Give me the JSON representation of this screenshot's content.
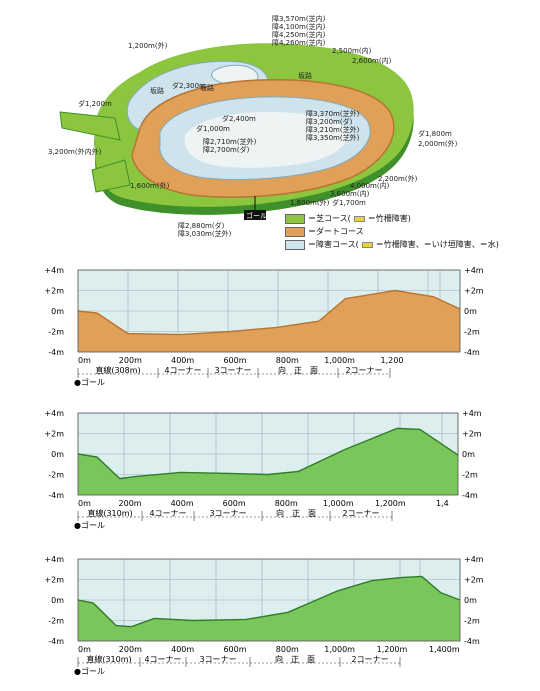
{
  "course_map": {
    "labels": {
      "hurdle_3570": "障3,570m(芝内)",
      "hurdle_4100": "障4,100m(芝内)",
      "hurdle_4250": "障4,250m(芝内)",
      "hurdle_4260": "障4,260m(芝内)",
      "turf_1200_outer": "1,200m(外)",
      "turf_2500_inner": "2,500m(内)",
      "turf_2600_inner": "2,600m(内)",
      "slope_left": "坂路",
      "slope_right": "坂路",
      "dirt_2300": "ダ2,300m",
      "dirt_1200": "ダ1,200m",
      "dirt_2400": "ダ2,400m",
      "dirt_1000": "ダ1,000m",
      "hurdle_3370": "障3,370m(芝外)",
      "hurdle_3200": "障3,200m(ダ)",
      "hurdle_3210": "障3,210m(芝外)",
      "hurdle_3350": "障3,350m(芝外)",
      "hurdle_2710": "障2,710m(芝外)",
      "hurdle_2700": "障2,700m(ダ)",
      "dirt_1800": "ダ1,800m",
      "turf_2000_outer": "2,000m(外)",
      "turf_3200": "3,200m(外内外)",
      "turf_1600_outer": "1,600m(外)",
      "turf_2200_outer": "2,200m(外)",
      "turf_4000_inner": "4,000m(内)",
      "turf_3600_inner": "3,600m(内)",
      "turf_1800_outer": "1,800m(外)",
      "dirt_1700": "ダ1,700m",
      "hurdle_2880": "障2,880m(ダ)",
      "hurdle_3030": "障3,030m(芝外)",
      "goal": "ゴール"
    },
    "legend": [
      {
        "swatch": "#8cc63f",
        "text": "＝芝コース(",
        "icon": "#e8d23a",
        "extra": "＝竹柵障害)"
      },
      {
        "swatch": "#e0a057",
        "text": "＝ダートコース",
        "icon": "",
        "extra": ""
      },
      {
        "swatch": "#cfe3ec",
        "text": "＝障害コース(",
        "icon": "#e8d23a",
        "extra": "＝竹柵障害、＝いけ垣障害、＝水)"
      }
    ],
    "colors": {
      "turf": "#8cc63f",
      "turf_dark": "#3f8f2a",
      "dirt": "#e0a057",
      "dirt_dark": "#b87433",
      "hurdle": "#cfe3ec",
      "infield": "#eef3f3"
    }
  },
  "profiles": [
    {
      "fill": "#e0a057",
      "stroke": "#b8742f",
      "y_left": [
        "+4m",
        "+2m",
        "0m",
        "-2m",
        "-4m"
      ],
      "y_right": [
        "+4m",
        "+2m",
        "0m",
        "-2m",
        "-4m"
      ],
      "x_ticks": [
        "0m",
        "200m",
        "400m",
        "600m",
        "800m",
        "1,000m",
        "1,200"
      ],
      "sections": [
        "直線(308m)",
        "4コーナー",
        "3コーナー",
        "向　正　面",
        "2コーナー"
      ],
      "goal": "●ゴール"
    },
    {
      "fill": "#7ac65a",
      "stroke": "#2f7d2a",
      "y_left": [
        "+4m",
        "+2m",
        "0m",
        "-2m",
        "-4m"
      ],
      "y_right": [
        "+4m",
        "+2m",
        "0m",
        "-2m",
        "-4m"
      ],
      "x_ticks": [
        "0m",
        "200m",
        "400m",
        "600m",
        "800m",
        "1,000m",
        "1,200m",
        "1,4"
      ],
      "sections": [
        "直線(310m)",
        "4コーナー",
        "3コーナー",
        "向　正　面",
        "2コーナー"
      ],
      "goal": "●ゴール"
    },
    {
      "fill": "#7ac65a",
      "stroke": "#2f7d2a",
      "y_left": [
        "+4m",
        "+2m",
        "0m",
        "-2m",
        "-4m"
      ],
      "y_right": [
        "+4m",
        "+2m",
        "0m",
        "-2m",
        "-4m"
      ],
      "x_ticks": [
        "0m",
        "200m",
        "400m",
        "600m",
        "800m",
        "1,000m",
        "1,200m",
        "1,400m"
      ],
      "sections": [
        "直線(310m)",
        "4コーナー",
        "3コーナー",
        "向　正　面",
        "2コーナー"
      ],
      "goal": "●ゴール"
    }
  ]
}
